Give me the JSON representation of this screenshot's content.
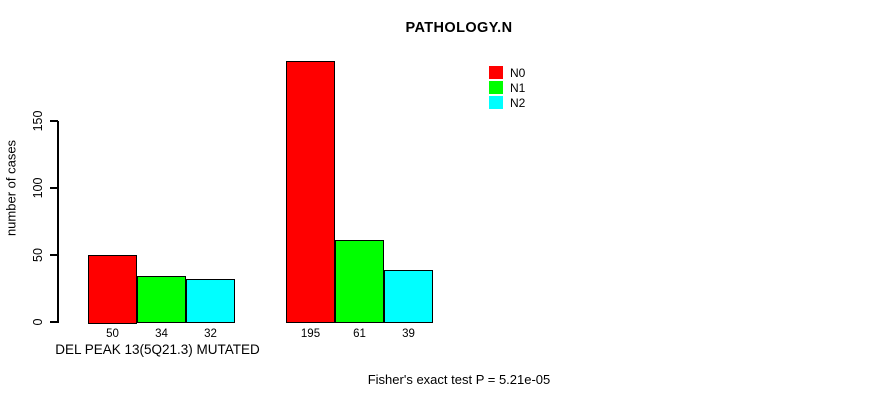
{
  "chart_data": {
    "type": "bar",
    "title": "PATHOLOGY.N",
    "ylabel": "number of cases",
    "xlabel": "",
    "ylim": [
      0,
      150
    ],
    "yticks": [
      0,
      50,
      100,
      150
    ],
    "grid": false,
    "legend_position": "top-right",
    "series": [
      {
        "name": "N0",
        "color": "#ff0000"
      },
      {
        "name": "N1",
        "color": "#00ff00"
      },
      {
        "name": "N2",
        "color": "#00ffff"
      }
    ],
    "groups": [
      {
        "label": "DEL PEAK 13(5Q21.3) MUTATED",
        "values": [
          50,
          34,
          32
        ]
      },
      {
        "label": "",
        "values": [
          195,
          61,
          39
        ]
      }
    ],
    "bar_outline_color": "#000000",
    "annotation": "Fisher's exact test P = 5.21e-05"
  }
}
